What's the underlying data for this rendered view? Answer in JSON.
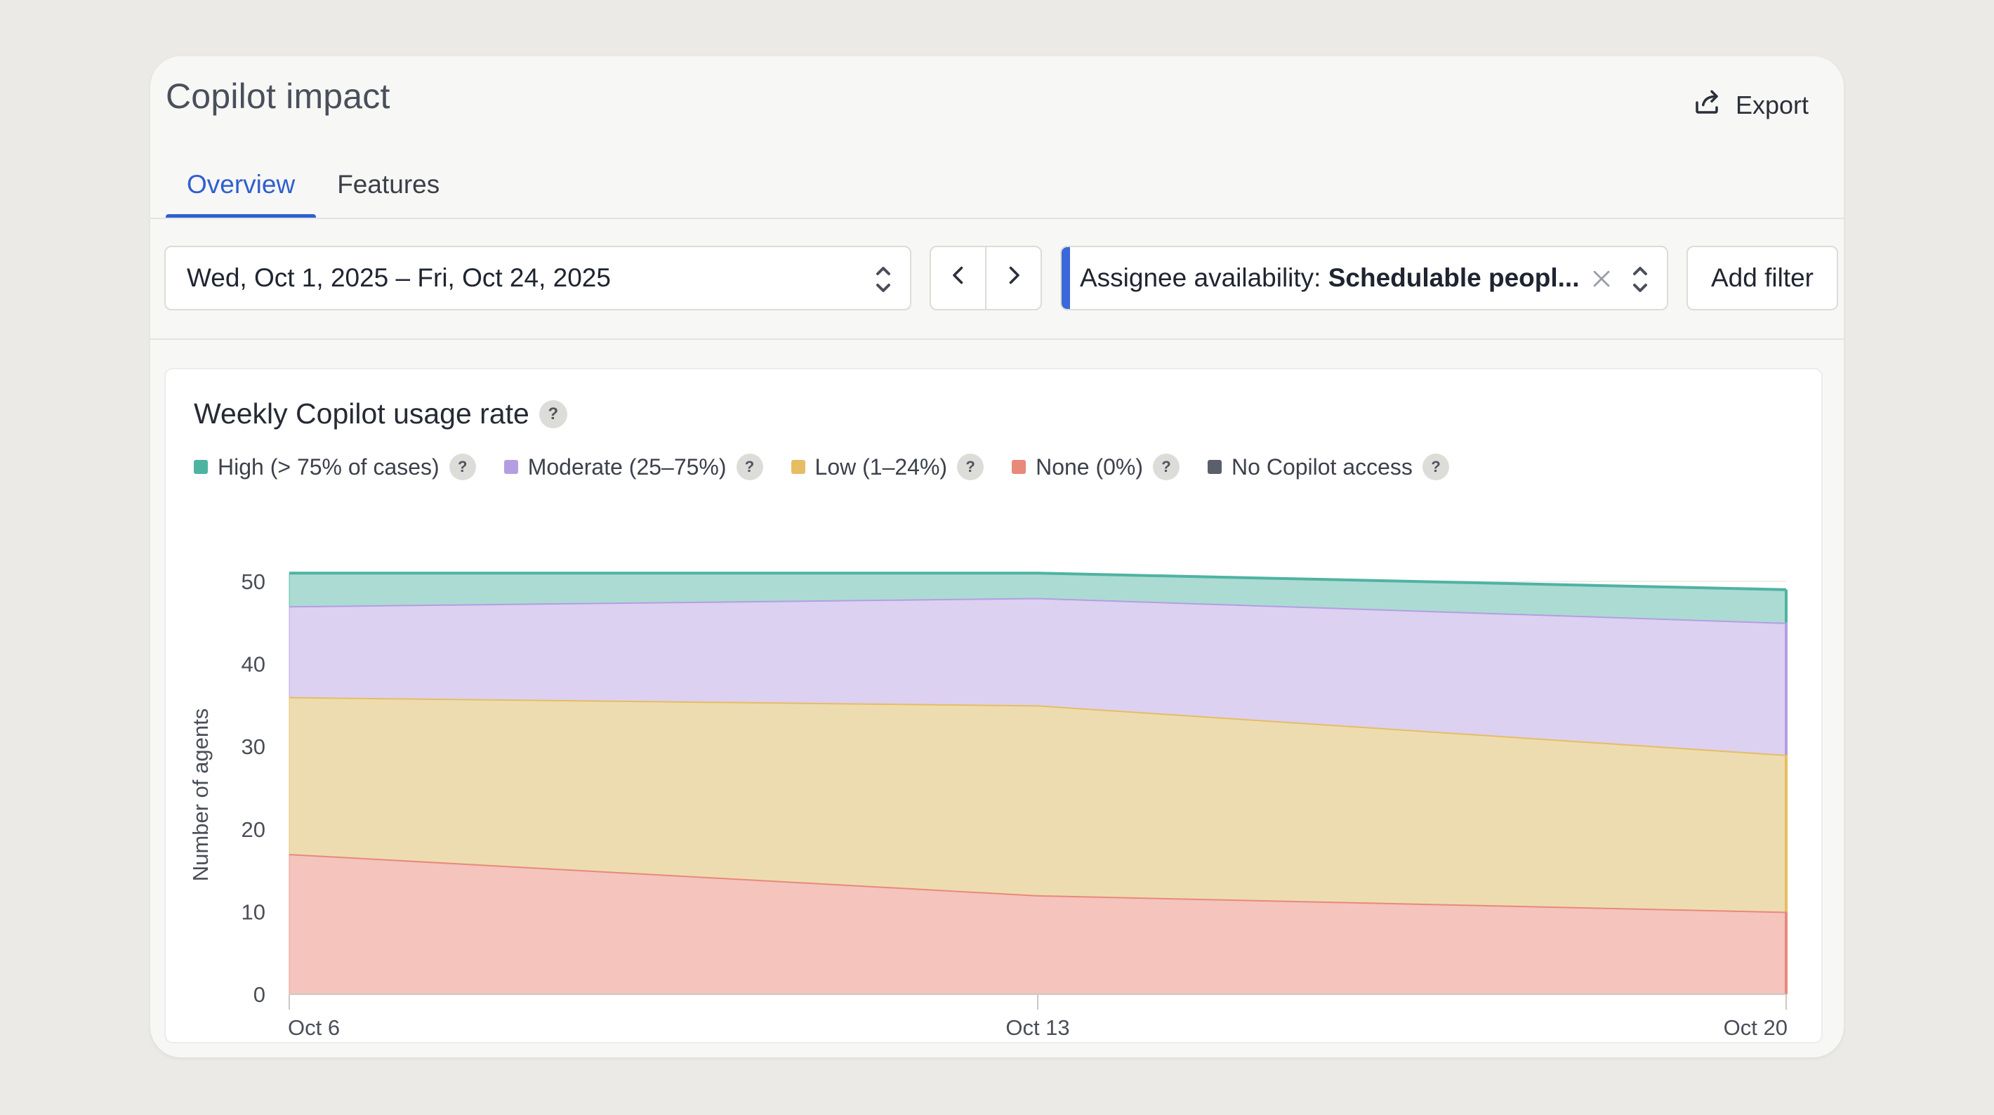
{
  "page": {
    "title": "Copilot impact",
    "export_label": "Export",
    "tabs": [
      {
        "label": "Overview",
        "active": true
      },
      {
        "label": "Features",
        "active": false
      }
    ]
  },
  "filters": {
    "date_range": "Wed, Oct 1, 2025 – Fri, Oct 24, 2025",
    "chip_label": "Assignee availability: ",
    "chip_value": "Schedulable peopl...",
    "add_filter_label": "Add filter",
    "accent": "#3a67d9"
  },
  "card": {
    "title": "Weekly Copilot usage rate",
    "help_glyph": "?"
  },
  "chart_data": {
    "type": "area",
    "stacked": true,
    "title": "Weekly Copilot usage rate",
    "xlabel": "",
    "ylabel": "Number of agents",
    "categories": [
      "Oct 6",
      "Oct 13",
      "Oct 20"
    ],
    "y_ticks": [
      0,
      10,
      20,
      30,
      40,
      50
    ],
    "ylim": [
      0,
      50
    ],
    "grid": true,
    "legend_position": "top-left",
    "series": [
      {
        "name": "None (0%)",
        "color": "#e8897a",
        "fill": "#f4c4bd",
        "values": [
          17,
          12,
          10
        ]
      },
      {
        "name": "Low (1–24%)",
        "color": "#e6bd62",
        "fill": "#eedcb1",
        "values": [
          19,
          23,
          19
        ]
      },
      {
        "name": "Moderate (25–75%)",
        "color": "#b49ee3",
        "fill": "#dcd1f0",
        "values": [
          11,
          13,
          16
        ]
      },
      {
        "name": "High (> 75% of cases)",
        "color": "#4fb3a2",
        "fill": "#acdbd3",
        "values": [
          4,
          3,
          4
        ]
      },
      {
        "name": "No Copilot access",
        "color": "#5a5f6b",
        "fill": "#5a5f6b",
        "values": [
          0,
          0,
          0
        ]
      }
    ]
  }
}
